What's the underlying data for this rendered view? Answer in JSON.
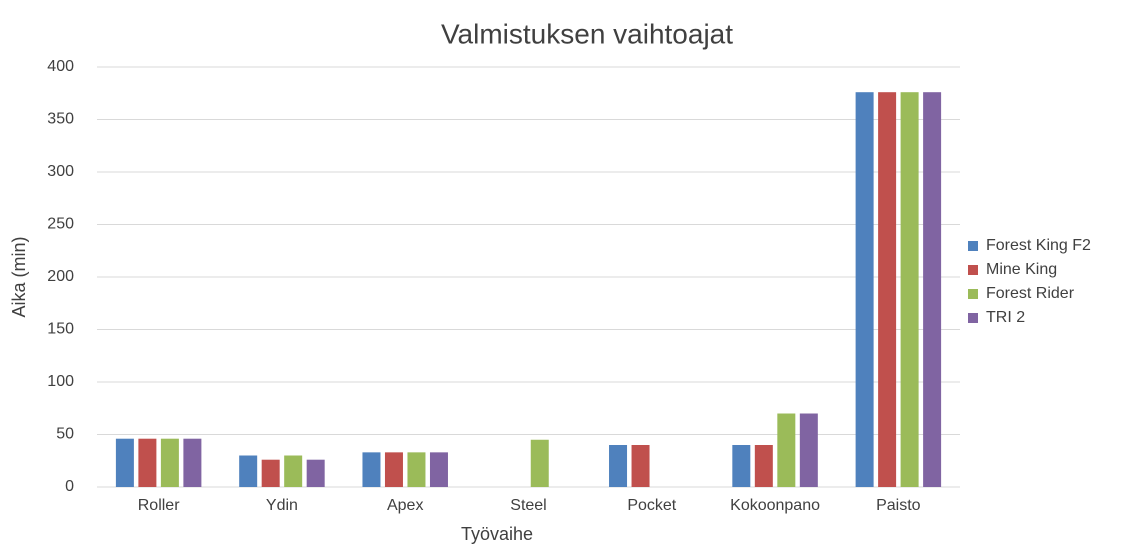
{
  "chart_data": {
    "type": "bar",
    "title": "Valmistuksen vaihtoajat",
    "x_label": "Työvaihe",
    "y_label": "Aika (min)",
    "categories": [
      "Roller",
      "Ydin",
      "Apex",
      "Steel",
      "Pocket",
      "Kokoonpano",
      "Paisto"
    ],
    "series": [
      {
        "name": "Forest King F2",
        "color": "#4f81bd",
        "values": [
          46,
          30,
          33,
          null,
          40,
          40,
          376
        ]
      },
      {
        "name": "Mine King",
        "color": "#c0504d",
        "values": [
          46,
          26,
          33,
          null,
          40,
          40,
          376
        ]
      },
      {
        "name": "Forest Rider",
        "color": "#9bbb59",
        "values": [
          46,
          30,
          33,
          45,
          null,
          70,
          376
        ]
      },
      {
        "name": "TRI 2",
        "color": "#8064a2",
        "values": [
          46,
          26,
          33,
          null,
          null,
          70,
          376
        ]
      }
    ],
    "ylim": [
      0,
      400
    ],
    "yticks": [
      0,
      50,
      100,
      150,
      200,
      250,
      300,
      350,
      400
    ],
    "grid": true,
    "legend": "right"
  }
}
